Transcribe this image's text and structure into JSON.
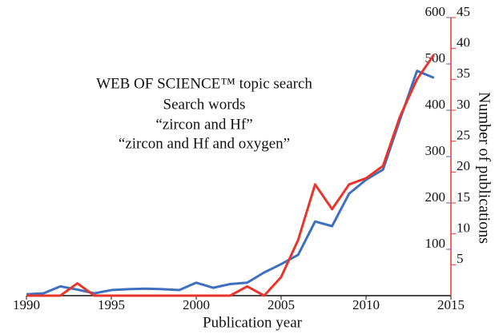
{
  "chart_data": {
    "type": "line",
    "title": "WEB OF SCIENCE™ topic search",
    "subtitle": "Search words",
    "x_label": "Publication year",
    "y_label": "Number of publications",
    "x": [
      1990,
      1991,
      1992,
      1993,
      1994,
      1995,
      1996,
      1997,
      1998,
      1999,
      2000,
      2001,
      2002,
      2003,
      2004,
      2005,
      2006,
      2007,
      2008,
      2009,
      2010,
      2011,
      2012,
      2013,
      2014
    ],
    "xlim": [
      1990,
      2015
    ],
    "xticks": [
      1990,
      1995,
      2000,
      2005,
      2010,
      2015
    ],
    "ylim": [
      0,
      600
    ],
    "yticks": [
      100,
      200,
      300,
      400,
      500,
      600
    ],
    "y2lim": [
      0,
      45
    ],
    "y2ticks": [
      5,
      10,
      15,
      20,
      25,
      30,
      35,
      40,
      45
    ],
    "series": [
      {
        "name": "“zircon and Hf”",
        "color": "#3f6fbf",
        "values": [
          3,
          5,
          20,
          13,
          5,
          12,
          14,
          15,
          14,
          12,
          28,
          17,
          25,
          28,
          50,
          68,
          88,
          160,
          150,
          220,
          250,
          272,
          380,
          485,
          470
        ]
      },
      {
        "name": "“zircon and Hf and oxygen”",
        "color": "#e8352b",
        "axis": "y2",
        "values": [
          0,
          0,
          0,
          2,
          0,
          0,
          0,
          0,
          0,
          0,
          0,
          0,
          0,
          1.5,
          0,
          3,
          9,
          18,
          14,
          18,
          19,
          21,
          29,
          35,
          39
        ]
      }
    ]
  }
}
